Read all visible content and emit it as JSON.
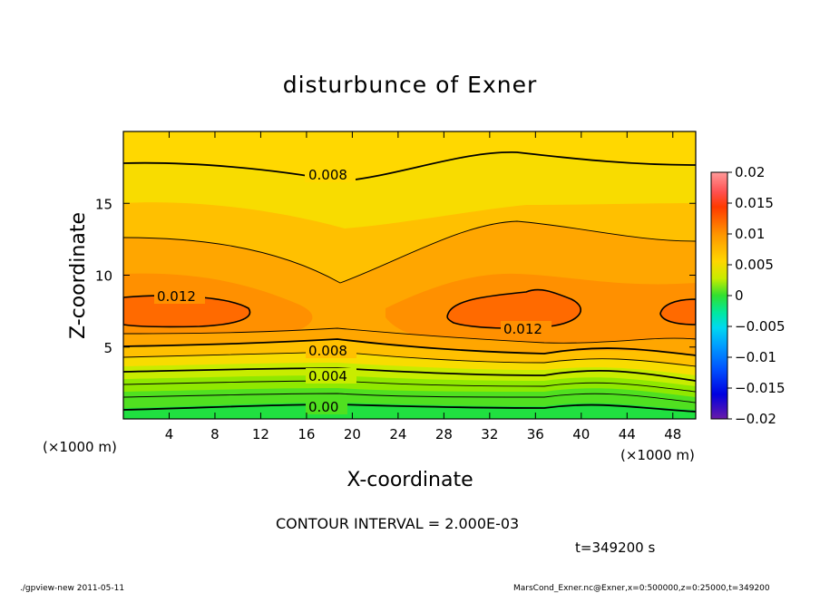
{
  "chart_data": {
    "type": "contour",
    "title": "disturbunce of Exner",
    "xlabel": "X-coordinate",
    "ylabel": "Z-coordinate",
    "x_unit_label_left": "(×1000 m)",
    "x_unit_label_right": "(×1000 m)",
    "xlim": [
      0,
      50
    ],
    "ylim": [
      0,
      20
    ],
    "x_ticks": [
      4,
      8,
      12,
      16,
      20,
      24,
      28,
      32,
      36,
      40,
      44,
      48
    ],
    "y_ticks": [
      5,
      10,
      15
    ],
    "colorbar": {
      "min": -0.02,
      "max": 0.02,
      "tick_labels": [
        "0.02",
        "0.015",
        "0.01",
        "0.005",
        "0",
        "−0.005",
        "−0.01",
        "−0.015",
        "−0.02"
      ],
      "tick_values": [
        0.02,
        0.015,
        0.01,
        0.005,
        0,
        -0.005,
        -0.01,
        -0.015,
        -0.02
      ]
    },
    "contour_interval_text": "CONTOUR INTERVAL = 2.000E-03",
    "contour_labels": [
      "0.008",
      "0.012",
      "0.012",
      "0.008",
      "0.004",
      "0.00"
    ],
    "time_text": "t=349200 s"
  },
  "footer": {
    "left": "./gpview-new   2011-05-11",
    "right": "MarsCond_Exner.nc@Exner,x=0:500000,z=0:25000,t=349200"
  },
  "colors": {
    "bright_green": "#20e040",
    "green": "#50e020",
    "yellow_green": "#c8ec00",
    "yellow": "#f8dc00",
    "light_orange": "#ffc000",
    "orange": "#ffa200",
    "dark_orange": "#ff8a10",
    "red_orange": "#ff6a00"
  }
}
